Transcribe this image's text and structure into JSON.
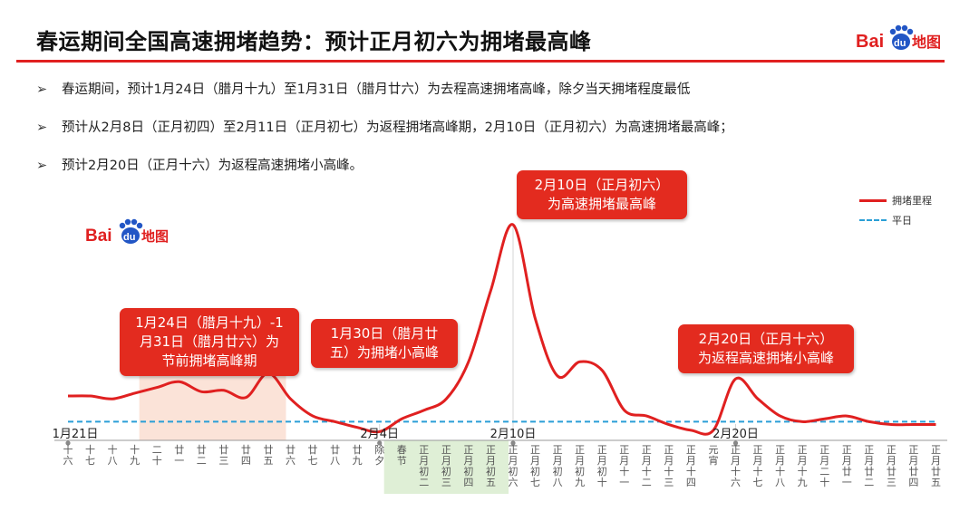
{
  "header": {
    "title": "春运期间全国高速拥堵趋势：预计正月初六为拥堵最高峰",
    "brand_text_bai": "Bai",
    "brand_text_du": "du",
    "brand_text_map": "地图"
  },
  "bullets": [
    "春运期间，预计1月24日（腊月十九）至1月31日（腊月廿六）为去程高速拥堵高峰，除夕当天拥堵程度最低",
    "预计从2月8日（正月初四）至2月11日（正月初七）为返程拥堵高峰期，2月10日（正月初六）为高速拥堵最高峰；",
    "预计2月20日（正月十六）为返程高速拥堵小高峰。"
  ],
  "bullet_marker": "➢",
  "callouts": {
    "peak_main": [
      "2月10日（正月初六）",
      "为高速拥堵最高峰"
    ],
    "pre_festival": [
      "1月24日（腊月十九）-1",
      "月31日（腊月廿六）为",
      "节前拥堵高峰期"
    ],
    "small_peak_jan30": [
      "1月30日（腊月廿",
      "五）为拥堵小高峰"
    ],
    "small_peak_feb20": [
      "2月20日（正月十六）",
      "为返程高速拥堵小高峰"
    ]
  },
  "legend": {
    "series_main": "拥堵里程",
    "series_avg": "平日"
  },
  "colors": {
    "accent_red": "#e02020",
    "callout_red": "#e32b1f",
    "avg_line_blue": "#2a9fd6",
    "pre_festival_band": "#fbe3d8",
    "return_band": "#dfefd6"
  },
  "chart_data": {
    "type": "line",
    "date_markers": [
      {
        "label": "1月21日",
        "index": 0
      },
      {
        "label": "2月4日",
        "index": 14
      },
      {
        "label": "2月10日",
        "index": 20
      },
      {
        "label": "2月20日",
        "index": 30
      }
    ],
    "categories": [
      "十六",
      "十七",
      "十八",
      "十九",
      "二十",
      "廿一",
      "廿二",
      "廿三",
      "廿四",
      "廿五",
      "廿六",
      "廿七",
      "廿八",
      "廿九",
      "除夕",
      "春节",
      "正月初二",
      "正月初三",
      "正月初四",
      "正月初五",
      "正月初六",
      "正月初七",
      "正月初八",
      "正月初九",
      "正月初十",
      "正月十一",
      "正月十二",
      "正月十三",
      "正月十四",
      "元宵",
      "正月十六",
      "正月十七",
      "正月十八",
      "正月十九",
      "正月二十",
      "正月廿一",
      "正月廿二",
      "正月廿三",
      "正月廿四",
      "正月廿五"
    ],
    "category_display": [
      "十\n六",
      "十\n七",
      "十\n八",
      "十\n九",
      "二\n十",
      "廿\n一",
      "廿\n二",
      "廿\n三",
      "廿\n四",
      "廿\n五",
      "廿\n六",
      "廿\n七",
      "廿\n八",
      "廿\n九",
      "除\n夕",
      "春\n节",
      "正\n月\n初\n二",
      "正\n月\n初\n三",
      "正\n月\n初\n四",
      "正\n月\n初\n五",
      "正\n月\n初\n六",
      "正\n月\n初\n七",
      "正\n月\n初\n八",
      "正\n月\n初\n九",
      "正\n月\n初\n十",
      "正\n月\n十\n一",
      "正\n月\n十\n二",
      "正\n月\n十\n三",
      "正\n月\n十\n四",
      "元\n宵",
      "正\n月\n十\n六",
      "正\n月\n十\n七",
      "正\n月\n十\n八",
      "正\n月\n十\n九",
      "正\n月\n二\n十",
      "正\n月\n廿\n一",
      "正\n月\n廿\n二",
      "正\n月\n廿\n三",
      "正\n月\n廿\n四",
      "正\n月\n廿\n五"
    ],
    "series": [
      {
        "name": "拥堵里程",
        "values": [
          1.3,
          1.3,
          1.2,
          1.4,
          1.6,
          1.8,
          1.45,
          1.5,
          1.25,
          2.1,
          1.2,
          0.6,
          0.4,
          0.2,
          0.05,
          0.5,
          0.8,
          1.2,
          2.5,
          5.0,
          7.3,
          4.0,
          2.0,
          2.5,
          2.2,
          0.8,
          0.6,
          0.3,
          0.1,
          0.1,
          1.9,
          1.2,
          0.6,
          0.4,
          0.5,
          0.6,
          0.4,
          0.3,
          0.3,
          0.3
        ]
      },
      {
        "name": "平日",
        "values": [
          0.4,
          0.4,
          0.4,
          0.4,
          0.4,
          0.4,
          0.4,
          0.4,
          0.4,
          0.4,
          0.4,
          0.4,
          0.4,
          0.4,
          0.4,
          0.4,
          0.4,
          0.4,
          0.4,
          0.4,
          0.4,
          0.4,
          0.4,
          0.4,
          0.4,
          0.4,
          0.4,
          0.4,
          0.4,
          0.4,
          0.4,
          0.4,
          0.4,
          0.4,
          0.4,
          0.4,
          0.4,
          0.4,
          0.4,
          0.4
        ]
      }
    ],
    "highlight_bands": [
      {
        "from_index": 3,
        "to_index": 10,
        "kind": "pre_festival"
      },
      {
        "from_index": 14,
        "to_index": 20,
        "kind": "return"
      }
    ],
    "ylim": [
      0,
      8
    ],
    "grid": false,
    "legend_position": "top-right"
  }
}
